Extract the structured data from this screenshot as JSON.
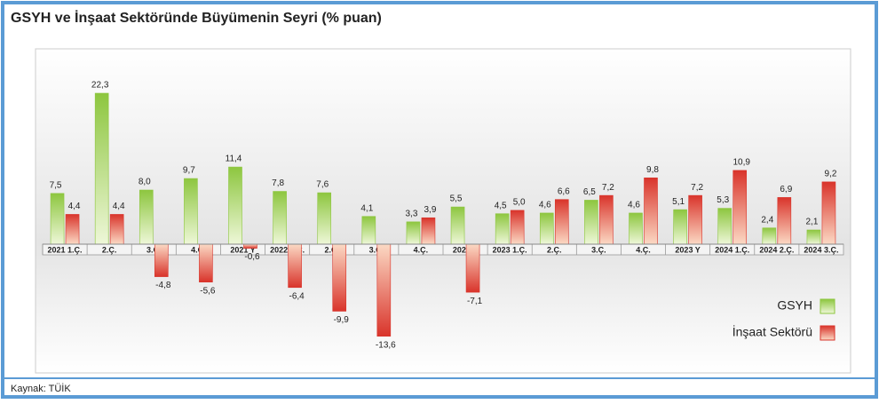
{
  "chart_data": {
    "type": "bar",
    "title": "GSYH ve İnşaat Sektöründe Büyümenin Seyri (% puan)",
    "source": "Kaynak: TÜİK",
    "categories": [
      "2021 1.Ç.",
      "2.Ç.",
      "3.Ç.",
      "4.Ç.",
      "2021 Y",
      "2022 1.Ç.",
      "2.Ç.",
      "3.Ç.",
      "4.Ç.",
      "2022 Y",
      "2023 1.Ç.",
      "2.Ç.",
      "3.Ç.",
      "4.Ç.",
      "2023 Y",
      "2024 1.Ç.",
      "2024 2.Ç.",
      "2024 3.Ç."
    ],
    "series": [
      {
        "name": "GSYH",
        "color": "#8dc63f",
        "values": [
          7.5,
          22.3,
          8.0,
          9.7,
          11.4,
          7.8,
          7.6,
          4.1,
          3.3,
          5.5,
          4.5,
          4.6,
          6.5,
          4.6,
          5.1,
          5.3,
          2.4,
          2.1
        ],
        "value_labels": [
          "7,5",
          "22,3",
          "8,0",
          "9,7",
          "11,4",
          "7,8",
          "7,6",
          "4,1",
          "3,3",
          "5,5",
          "4,5",
          "4,6",
          "6,5",
          "4,6",
          "5,1",
          "5,3",
          "2,4",
          "2,1"
        ]
      },
      {
        "name": "İnşaat Sektörü",
        "color": "#d9342b",
        "values": [
          4.4,
          4.4,
          -4.8,
          -5.6,
          -0.6,
          -6.4,
          -9.9,
          -13.6,
          3.9,
          -7.1,
          5.0,
          6.6,
          7.2,
          9.8,
          7.2,
          10.9,
          6.9,
          9.2
        ],
        "value_labels": [
          "4,4",
          "4,4",
          "-4,8",
          "-5,6",
          "-0,6",
          "-6,4",
          "-9,9",
          "-13,6",
          "3,9",
          "-7,1",
          "5,0",
          "6,6",
          "7,2",
          "9,8",
          "7,2",
          "10,9",
          "6,9",
          "9,2"
        ]
      }
    ],
    "legend": "bottom-right"
  }
}
